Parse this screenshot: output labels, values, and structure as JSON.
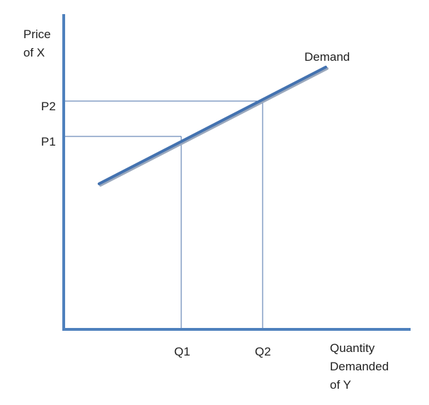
{
  "diagram": {
    "y_axis_label": [
      "Price",
      "of X"
    ],
    "x_axis_label": [
      "Quantity",
      "Demanded",
      "of Y"
    ],
    "curve_label": "Demand",
    "price_levels": [
      "P1",
      "P2"
    ],
    "quantity_levels": [
      "Q1",
      "Q2"
    ]
  }
}
